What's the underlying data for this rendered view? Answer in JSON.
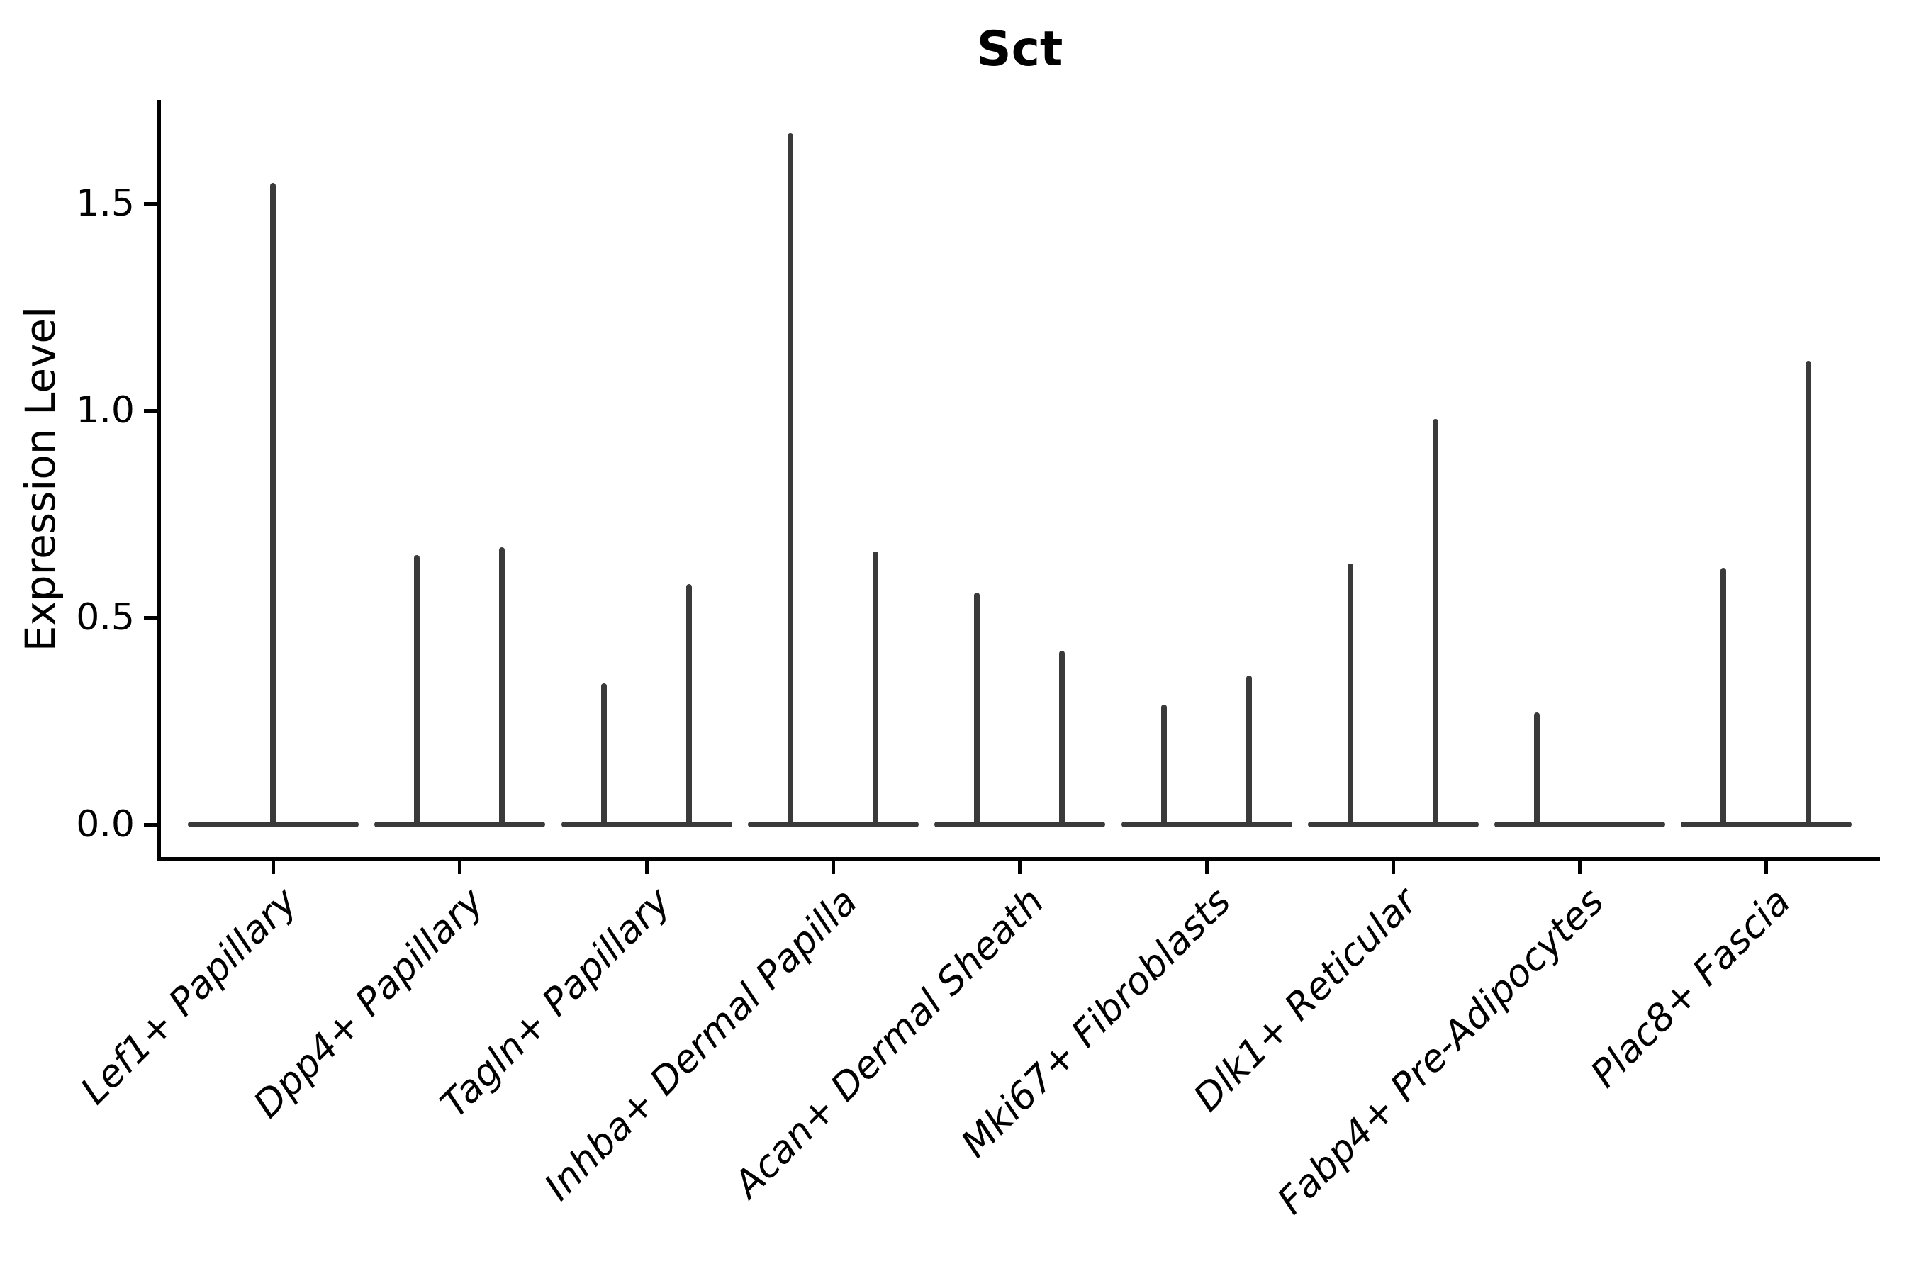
{
  "chart_data": {
    "type": "violin",
    "title": "Sct",
    "ylabel": "Expression Level",
    "xlabel": "",
    "grid": false,
    "legend": "none",
    "background": "#ffffff",
    "colors": {
      "violin_line": "#3a3a3a",
      "axis": "#000000",
      "text": "#000000"
    },
    "yaxis": {
      "tick_labels": [
        "0.0",
        "0.5",
        "1.0",
        "1.5"
      ],
      "tick_values": [
        0.0,
        0.5,
        1.0,
        1.5
      ],
      "ylim": [
        -0.08,
        1.75
      ]
    },
    "xaxis": {
      "label_rotation_deg": 45,
      "label_style": "italic"
    },
    "categories": [
      "Lef1+ Papillary",
      "Dpp4+ Papillary",
      "Tagln+ Papillary",
      "Inhba+ Dermal Papilla",
      "Acan+ Dermal Sheath",
      "Mki67+ Fibroblasts",
      "Dlk1+ Reticular",
      "Fabp4+ Pre-Adipocytes",
      "Plac8+ Fascia"
    ],
    "series": [
      {
        "category": "Lef1+ Papillary",
        "baseline_expression": 0.0,
        "spikes": [
          {
            "slot": "center",
            "max_expression": 1.55
          }
        ]
      },
      {
        "category": "Dpp4+ Papillary",
        "baseline_expression": 0.0,
        "spikes": [
          {
            "slot": "left",
            "max_expression": 0.65
          },
          {
            "slot": "right",
            "max_expression": 0.67
          }
        ]
      },
      {
        "category": "Tagln+ Papillary",
        "baseline_expression": 0.0,
        "spikes": [
          {
            "slot": "left",
            "max_expression": 0.34
          },
          {
            "slot": "right",
            "max_expression": 0.58
          }
        ]
      },
      {
        "category": "Inhba+ Dermal Papilla",
        "baseline_expression": 0.0,
        "spikes": [
          {
            "slot": "left",
            "max_expression": 1.67
          },
          {
            "slot": "right",
            "max_expression": 0.66
          }
        ]
      },
      {
        "category": "Acan+ Dermal Sheath",
        "baseline_expression": 0.0,
        "spikes": [
          {
            "slot": "left",
            "max_expression": 0.56
          },
          {
            "slot": "right",
            "max_expression": 0.42
          }
        ]
      },
      {
        "category": "Mki67+ Fibroblasts",
        "baseline_expression": 0.0,
        "spikes": [
          {
            "slot": "left",
            "max_expression": 0.29
          },
          {
            "slot": "right",
            "max_expression": 0.36
          }
        ]
      },
      {
        "category": "Dlk1+ Reticular",
        "baseline_expression": 0.0,
        "spikes": [
          {
            "slot": "left",
            "max_expression": 0.63
          },
          {
            "slot": "right",
            "max_expression": 0.98
          }
        ]
      },
      {
        "category": "Fabp4+ Pre-Adipocytes",
        "baseline_expression": 0.0,
        "spikes": [
          {
            "slot": "left",
            "max_expression": 0.27
          }
        ]
      },
      {
        "category": "Plac8+ Fascia",
        "baseline_expression": 0.0,
        "spikes": [
          {
            "slot": "left",
            "max_expression": 0.62
          },
          {
            "slot": "right",
            "max_expression": 1.12
          }
        ]
      }
    ]
  }
}
